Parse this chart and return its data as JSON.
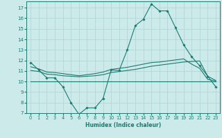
{
  "xlabel": "Humidex (Indice chaleur)",
  "bg_color": "#cceaea",
  "line_color": "#1a7a6e",
  "grid_color": "#add4d4",
  "xlim": [
    -0.5,
    23.5
  ],
  "ylim": [
    7,
    17.6
  ],
  "yticks": [
    7,
    8,
    9,
    10,
    11,
    12,
    13,
    14,
    15,
    16,
    17
  ],
  "xticks": [
    0,
    1,
    2,
    3,
    4,
    5,
    6,
    7,
    8,
    9,
    10,
    11,
    12,
    13,
    14,
    15,
    16,
    17,
    18,
    19,
    20,
    21,
    22,
    23
  ],
  "line1_x": [
    0,
    1,
    2,
    3,
    4,
    5,
    6,
    7,
    8,
    9,
    10,
    11,
    12,
    13,
    14,
    15,
    16,
    17,
    18,
    19,
    20,
    21,
    22,
    23
  ],
  "line1_y": [
    11.8,
    11.1,
    10.35,
    10.35,
    9.5,
    8.0,
    6.9,
    7.5,
    7.5,
    8.4,
    11.1,
    11.05,
    13.0,
    15.3,
    15.9,
    17.35,
    16.7,
    16.7,
    15.1,
    13.5,
    12.35,
    11.5,
    10.5,
    9.5
  ],
  "line2_x": [
    0,
    23
  ],
  "line2_y": [
    10.0,
    10.0
  ],
  "line3_x": [
    0,
    1,
    2,
    3,
    4,
    5,
    6,
    7,
    8,
    9,
    10,
    11,
    12,
    13,
    14,
    15,
    16,
    17,
    18,
    19,
    20,
    21,
    22,
    23
  ],
  "line3_y": [
    11.05,
    10.95,
    10.7,
    10.65,
    10.55,
    10.5,
    10.45,
    10.5,
    10.55,
    10.65,
    10.85,
    10.95,
    11.05,
    11.15,
    11.3,
    11.45,
    11.55,
    11.65,
    11.75,
    11.85,
    11.9,
    11.95,
    10.5,
    10.1
  ],
  "line4_x": [
    0,
    1,
    2,
    3,
    4,
    5,
    6,
    7,
    8,
    9,
    10,
    11,
    12,
    13,
    14,
    15,
    16,
    17,
    18,
    19,
    20,
    21,
    22,
    23
  ],
  "line4_y": [
    11.4,
    11.2,
    10.9,
    10.85,
    10.75,
    10.65,
    10.55,
    10.65,
    10.75,
    10.9,
    11.15,
    11.25,
    11.35,
    11.5,
    11.65,
    11.8,
    11.85,
    11.95,
    12.05,
    12.15,
    11.65,
    11.25,
    10.2,
    10.05
  ]
}
